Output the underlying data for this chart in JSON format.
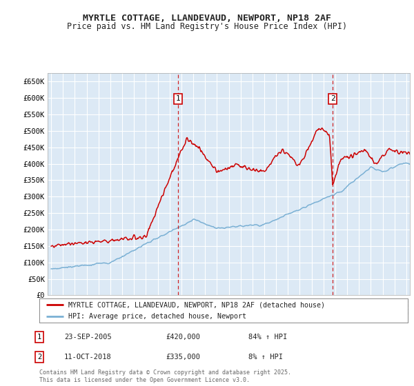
{
  "title": "MYRTLE COTTAGE, LLANDEVAUD, NEWPORT, NP18 2AF",
  "subtitle": "Price paid vs. HM Land Registry's House Price Index (HPI)",
  "fig_bg_color": "#ffffff",
  "plot_bg_color": "#dce9f5",
  "red_color": "#cc0000",
  "blue_color": "#7ab0d4",
  "grid_color": "#ffffff",
  "ylim": [
    0,
    675000
  ],
  "yticks": [
    0,
    50000,
    100000,
    150000,
    200000,
    250000,
    300000,
    350000,
    400000,
    450000,
    500000,
    550000,
    600000,
    650000
  ],
  "ytick_labels": [
    "£0",
    "£50K",
    "£100K",
    "£150K",
    "£200K",
    "£250K",
    "£300K",
    "£350K",
    "£400K",
    "£450K",
    "£500K",
    "£550K",
    "£600K",
    "£650K"
  ],
  "xmin_year": 1995,
  "xmax_year": 2025,
  "xtick_years": [
    1995,
    1996,
    1997,
    1998,
    1999,
    2000,
    2001,
    2002,
    2003,
    2004,
    2005,
    2006,
    2007,
    2008,
    2009,
    2010,
    2011,
    2012,
    2013,
    2014,
    2015,
    2016,
    2017,
    2018,
    2019,
    2020,
    2021,
    2022,
    2023,
    2024,
    2025
  ],
  "sale1_x": 2005.73,
  "sale1_y": 420000,
  "sale1_label": "1",
  "sale2_x": 2018.78,
  "sale2_y": 335000,
  "sale2_label": "2",
  "legend_red_label": "MYRTLE COTTAGE, LLANDEVAUD, NEWPORT, NP18 2AF (detached house)",
  "legend_blue_label": "HPI: Average price, detached house, Newport",
  "annotation1_date": "23-SEP-2005",
  "annotation1_price": "£420,000",
  "annotation1_hpi": "84% ↑ HPI",
  "annotation2_date": "11-OCT-2018",
  "annotation2_price": "£335,000",
  "annotation2_hpi": "8% ↑ HPI",
  "footer": "Contains HM Land Registry data © Crown copyright and database right 2025.\nThis data is licensed under the Open Government Licence v3.0."
}
